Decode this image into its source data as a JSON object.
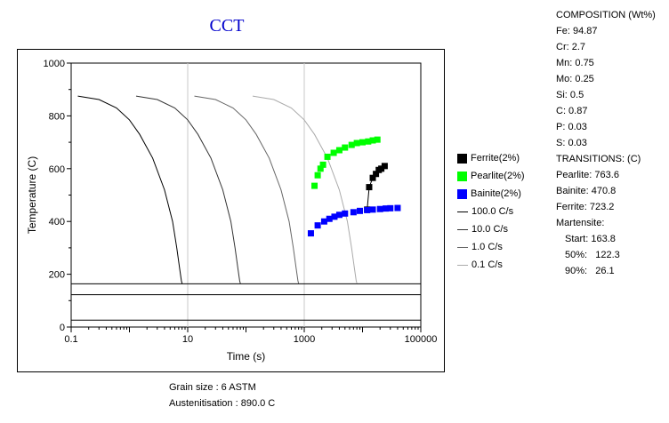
{
  "chart_data": {
    "type": "line",
    "title": "CCT",
    "xlabel": "Time (s)",
    "ylabel": "Temperature (C)",
    "xscale": "log",
    "xlim": [
      0.1,
      100000
    ],
    "ylim": [
      0,
      1000
    ],
    "x_ticks": [
      "0.1",
      "10",
      "1000",
      "100000"
    ],
    "y_ticks": [
      "0",
      "200",
      "400",
      "600",
      "800",
      "1000"
    ],
    "grid": "vertical at 10, 1000",
    "legend_position": "right",
    "horizontal_lines": [
      163.8,
      122.3,
      26.1
    ],
    "cooling_curves": [
      {
        "name": "100.0 C/s",
        "color": "#000000",
        "points": [
          [
            0.13,
            875
          ],
          [
            0.3,
            862
          ],
          [
            0.6,
            830
          ],
          [
            1.0,
            785
          ],
          [
            1.5,
            730
          ],
          [
            2.5,
            640
          ],
          [
            4,
            520
          ],
          [
            5.5,
            400
          ],
          [
            6.5,
            300
          ],
          [
            7.3,
            220
          ],
          [
            7.8,
            175
          ],
          [
            8,
            165
          ]
        ]
      },
      {
        "name": "10.0 C/s",
        "color": "#333333",
        "points": [
          [
            1.3,
            875
          ],
          [
            3,
            862
          ],
          [
            6,
            830
          ],
          [
            10,
            785
          ],
          [
            15,
            730
          ],
          [
            25,
            640
          ],
          [
            40,
            520
          ],
          [
            55,
            400
          ],
          [
            65,
            300
          ],
          [
            73,
            220
          ],
          [
            78,
            175
          ],
          [
            80,
            165
          ]
        ]
      },
      {
        "name": "1.0 C/s",
        "color": "#666666",
        "points": [
          [
            13,
            875
          ],
          [
            30,
            862
          ],
          [
            60,
            830
          ],
          [
            100,
            785
          ],
          [
            150,
            730
          ],
          [
            250,
            640
          ],
          [
            400,
            520
          ],
          [
            550,
            400
          ],
          [
            650,
            300
          ],
          [
            730,
            220
          ],
          [
            780,
            175
          ],
          [
            800,
            165
          ]
        ]
      },
      {
        "name": "0.1 C/s",
        "color": "#aaaaaa",
        "points": [
          [
            130,
            875
          ],
          [
            300,
            862
          ],
          [
            600,
            830
          ],
          [
            1000,
            785
          ],
          [
            1500,
            730
          ],
          [
            2500,
            640
          ],
          [
            4000,
            520
          ],
          [
            5500,
            400
          ],
          [
            6500,
            300
          ],
          [
            7300,
            220
          ],
          [
            7800,
            175
          ],
          [
            8000,
            165
          ]
        ]
      }
    ],
    "series": [
      {
        "name": "Ferrite(2%)",
        "color": "#000000",
        "points": [
          [
            12000,
            445
          ],
          [
            13000,
            530
          ],
          [
            15000,
            565
          ],
          [
            17000,
            580
          ],
          [
            19000,
            595
          ],
          [
            21000,
            600
          ],
          [
            24000,
            610
          ]
        ]
      },
      {
        "name": "Pearlite(2%)",
        "color": "#00ff00",
        "points": [
          [
            1500,
            535
          ],
          [
            1700,
            575
          ],
          [
            1900,
            600
          ],
          [
            2100,
            615
          ],
          [
            2500,
            645
          ],
          [
            3200,
            660
          ],
          [
            4000,
            670
          ],
          [
            5000,
            680
          ],
          [
            6500,
            690
          ],
          [
            8000,
            697
          ],
          [
            10000,
            700
          ],
          [
            12500,
            703
          ],
          [
            15000,
            707
          ],
          [
            18000,
            710
          ]
        ]
      },
      {
        "name": "Bainite(2%)",
        "color": "#0000ff",
        "points": [
          [
            1300,
            355
          ],
          [
            1700,
            385
          ],
          [
            2200,
            400
          ],
          [
            2700,
            410
          ],
          [
            3300,
            418
          ],
          [
            4000,
            425
          ],
          [
            5000,
            430
          ],
          [
            7000,
            435
          ],
          [
            9000,
            440
          ],
          [
            12000,
            443
          ],
          [
            15000,
            445
          ],
          [
            20000,
            447
          ],
          [
            25000,
            449
          ],
          [
            30000,
            450
          ],
          [
            40000,
            451
          ]
        ]
      }
    ]
  },
  "legend": {
    "items": [
      {
        "label": "Ferrite(2%)",
        "kind": "box",
        "color": "#000000"
      },
      {
        "label": "Pearlite(2%)",
        "kind": "box",
        "color": "#00ff00"
      },
      {
        "label": "Bainite(2%)",
        "kind": "box",
        "color": "#0000ff"
      },
      {
        "label": "100.0 C/s",
        "kind": "line",
        "color": "#000000"
      },
      {
        "label": "10.0 C/s",
        "kind": "line",
        "color": "#333333"
      },
      {
        "label": "1.0 C/s",
        "kind": "line",
        "color": "#666666"
      },
      {
        "label": "0.1 C/s",
        "kind": "line",
        "color": "#aaaaaa"
      }
    ]
  },
  "footer": {
    "grain_size": "Grain size : 6 ASTM",
    "austenitisation": "Austenitisation : 890.0 C"
  },
  "composition": {
    "title": "COMPOSITION (Wt%)",
    "items": [
      "Fe: 94.87",
      "Cr: 2.7",
      "Mn: 0.75",
      "Mo: 0.25",
      "Si: 0.5",
      "C: 0.87",
      "P: 0.03",
      "S: 0.03"
    ]
  },
  "transitions": {
    "title": "TRANSITIONS: (C)",
    "pearlite": "Pearlite: 763.6",
    "bainite": "Bainite: 470.8",
    "ferrite": "Ferrite: 723.2",
    "martensite_title": "Martensite:",
    "start": "Start: 163.8",
    "p50": "50%:   122.3",
    "p90": "90%:   26.1"
  }
}
